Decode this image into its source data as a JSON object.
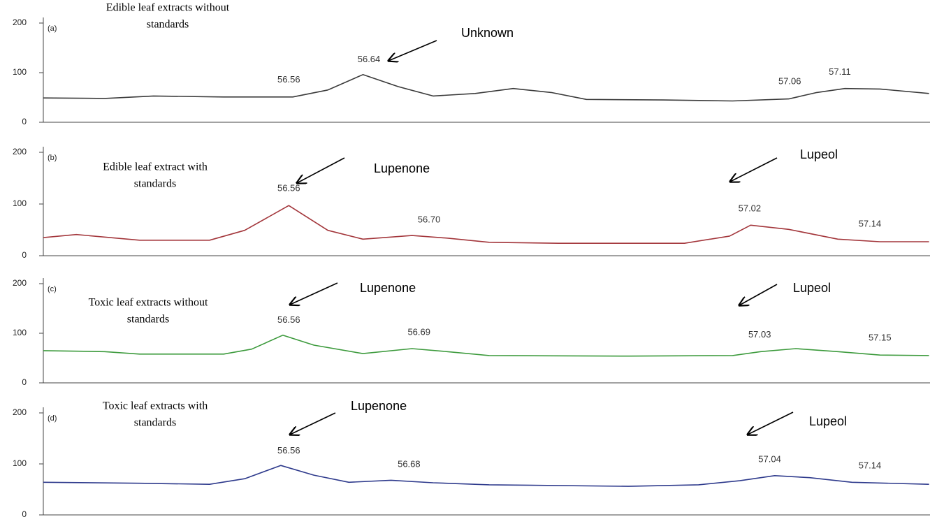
{
  "chart_data": [
    {
      "type": "line",
      "panel": "(a)",
      "title": [
        "Edible leaf extracts without",
        "standards"
      ],
      "x": [
        56.315,
        56.376,
        56.425,
        56.495,
        56.564,
        56.599,
        56.634,
        56.669,
        56.704,
        56.746,
        56.784,
        56.822,
        56.857,
        56.934,
        57.003,
        57.059,
        57.087,
        57.115,
        57.15,
        57.199
      ],
      "series": [
        {
          "color": "#3a3a3a",
          "values": [
            49,
            48,
            53,
            51,
            51,
            65,
            96,
            72,
            53,
            58,
            68,
            60,
            46,
            45,
            43,
            47,
            60,
            68,
            67,
            58
          ]
        }
      ],
      "peak_labels": [
        56.56,
        56.64,
        57.06,
        57.11
      ],
      "annotations": [
        "Unknown"
      ],
      "xlim": [
        56.315,
        57.2
      ],
      "ylim": [
        0,
        200
      ],
      "yticks": [
        0,
        100,
        200
      ]
    },
    {
      "type": "line",
      "panel": "(b)",
      "title": [
        "Edible leaf extract with",
        "standards"
      ],
      "x": [
        56.315,
        56.348,
        56.411,
        56.481,
        56.516,
        56.56,
        56.599,
        56.634,
        56.683,
        56.718,
        56.76,
        56.829,
        56.955,
        57.0,
        57.021,
        57.059,
        57.108,
        57.15,
        57.199
      ],
      "series": [
        {
          "color": "#a3363b",
          "values": [
            35,
            41,
            30,
            30,
            49,
            97,
            49,
            32,
            39,
            34,
            26,
            24,
            24,
            38,
            59,
            51,
            32,
            27,
            27
          ]
        }
      ],
      "peak_labels": [
        56.56,
        {
          "value": 56.7,
          "label": "56.70"
        },
        57.02,
        57.14
      ],
      "annotations": [
        "Lupenone",
        "Lupeol"
      ],
      "xlim": [
        56.315,
        57.2
      ],
      "ylim": [
        0,
        200
      ],
      "yticks": [
        0,
        100,
        200
      ]
    },
    {
      "type": "line",
      "panel": "(c)",
      "title": [
        "Toxic leaf extracts without",
        "standards"
      ],
      "x": [
        56.315,
        56.376,
        56.411,
        56.495,
        56.523,
        56.554,
        56.585,
        56.634,
        56.683,
        56.718,
        56.76,
        56.899,
        57.003,
        57.031,
        57.066,
        57.108,
        57.15,
        57.199
      ],
      "series": [
        {
          "color": "#3c9a3c",
          "values": [
            65,
            63,
            58,
            58,
            68,
            96,
            76,
            59,
            69,
            63,
            55,
            54,
            55,
            63,
            69,
            63,
            56,
            55
          ]
        }
      ],
      "peak_labels": [
        56.56,
        56.69,
        57.03,
        57.15
      ],
      "annotations": [
        "Lupenone",
        "Lupeol"
      ],
      "xlim": [
        56.315,
        57.2
      ],
      "ylim": [
        0,
        200
      ],
      "yticks": [
        0,
        100,
        200
      ]
    },
    {
      "type": "line",
      "panel": "(d)",
      "title": [
        "Toxic leaf extracts with",
        "standards"
      ],
      "x": [
        56.315,
        56.411,
        56.481,
        56.516,
        56.552,
        56.585,
        56.62,
        56.662,
        56.704,
        56.76,
        56.899,
        56.969,
        57.01,
        57.045,
        57.08,
        57.122,
        57.199
      ],
      "series": [
        {
          "color": "#2e3a8c",
          "values": [
            64,
            62,
            60,
            71,
            97,
            78,
            64,
            68,
            63,
            59,
            56,
            59,
            67,
            77,
            73,
            64,
            60
          ]
        }
      ],
      "peak_labels": [
        56.56,
        56.68,
        57.04,
        57.14
      ],
      "annotations": [
        "Lupenone",
        "Lupeol"
      ],
      "xlim": [
        56.315,
        57.2
      ],
      "ylim": [
        0,
        200
      ],
      "yticks": [
        0,
        100,
        200
      ]
    }
  ]
}
